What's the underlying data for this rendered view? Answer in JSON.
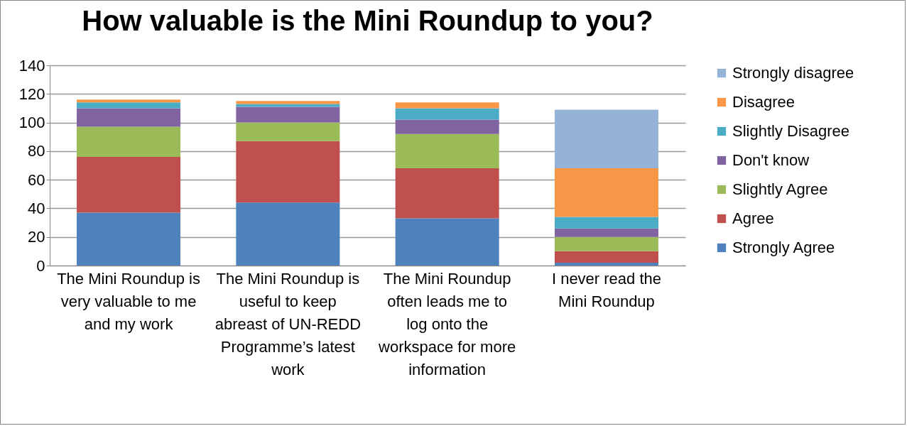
{
  "chart_data": {
    "type": "bar",
    "title": "How valuable is the Mini Roundup to you?",
    "categories": [
      "The Mini Roundup is very valuable to me and my work",
      "The Mini Roundup is useful to keep abreast of UN-REDD Programme’s latest work",
      "The Mini Roundup often leads me to log onto the workspace for more information",
      "I never read the Mini Roundup"
    ],
    "stacked": true,
    "ylim": [
      0,
      140
    ],
    "yticks": [
      0,
      20,
      40,
      60,
      80,
      100,
      120,
      140
    ],
    "grid": "y",
    "legend": "right",
    "series": [
      {
        "name": "Strongly Agree",
        "color": "#4f81bd",
        "values": [
          37,
          44,
          33,
          2
        ]
      },
      {
        "name": "Agree",
        "color": "#c0504d",
        "values": [
          39,
          43,
          35,
          8
        ]
      },
      {
        "name": "Slightly Agree",
        "color": "#9bbb59",
        "values": [
          21,
          13,
          24,
          10
        ]
      },
      {
        "name": "Don't know",
        "color": "#8064a2",
        "values": [
          13,
          11,
          10,
          6
        ]
      },
      {
        "name": "Slightly Disagree",
        "color": "#4bacc6",
        "values": [
          4,
          2,
          8,
          8
        ]
      },
      {
        "name": "Disagree",
        "color": "#f79646",
        "values": [
          2,
          2,
          4,
          34
        ]
      },
      {
        "name": "Strongly disagree",
        "color": "#95b3d7",
        "values": [
          0,
          0,
          0,
          41
        ]
      }
    ]
  }
}
